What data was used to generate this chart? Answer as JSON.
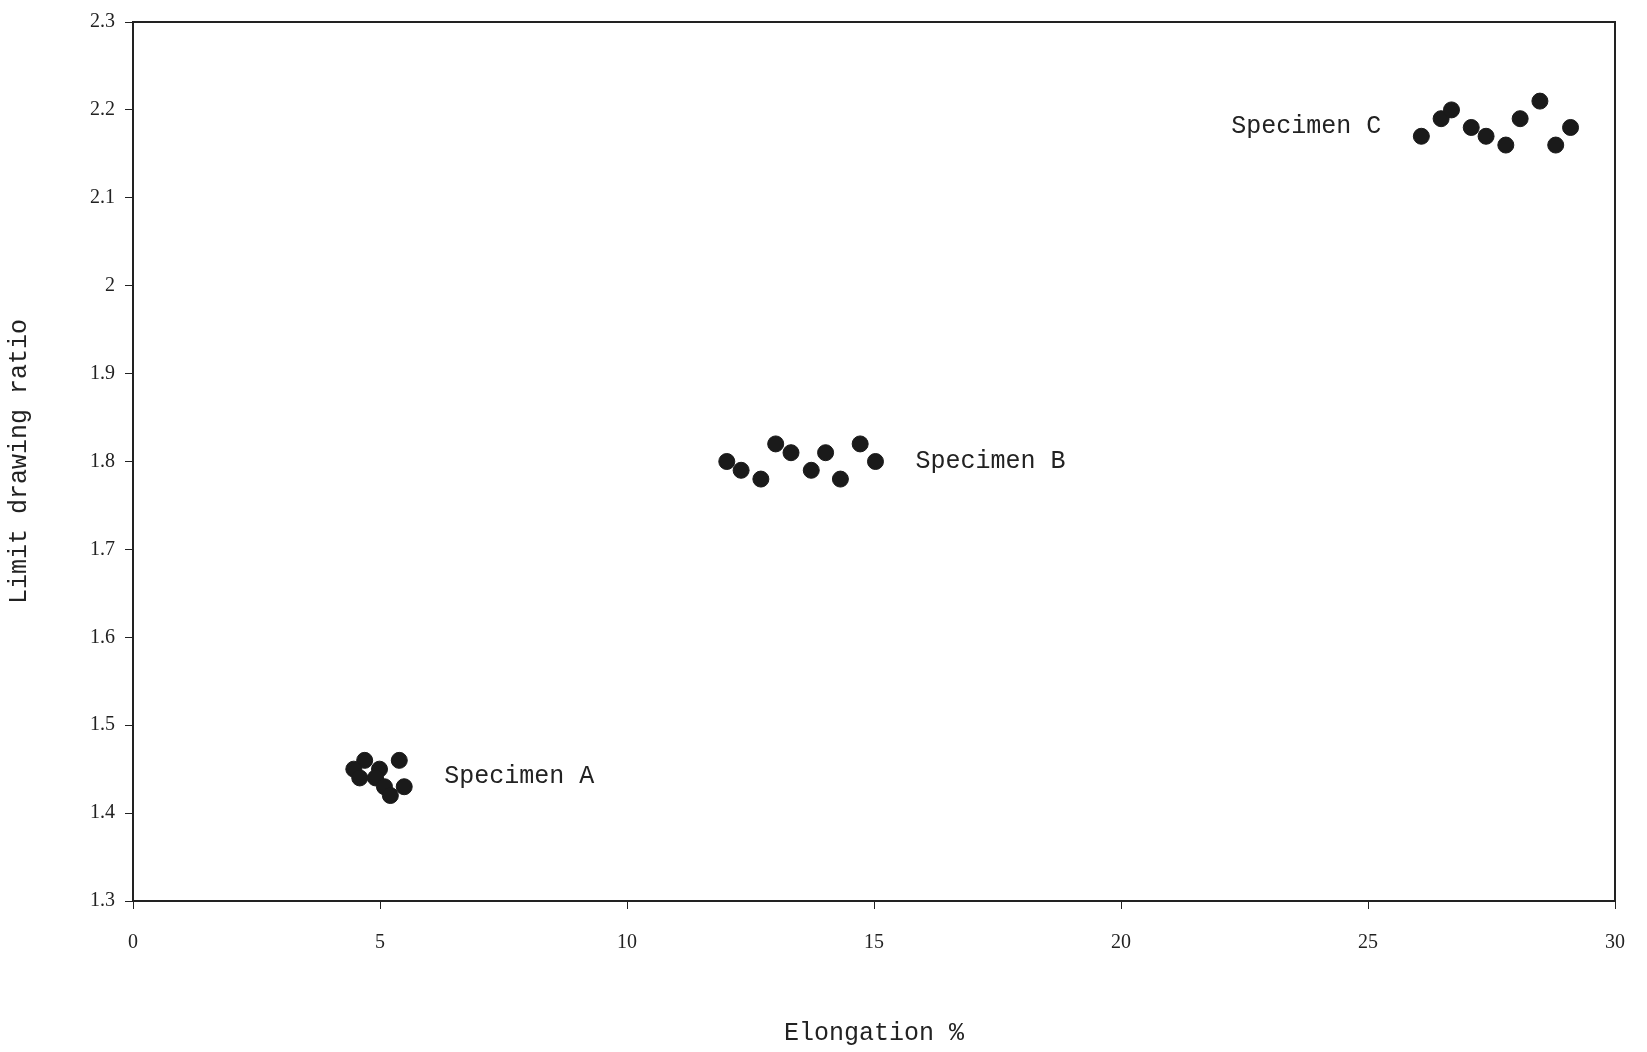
{
  "chart_data": {
    "type": "scatter",
    "xlabel": "Elongation %",
    "ylabel": "Limit drawing ratio",
    "xlim": [
      0,
      30
    ],
    "xticks": [
      0,
      5,
      10,
      15,
      20,
      25,
      30
    ],
    "ylim": [
      1.3,
      2.3
    ],
    "yticks": [
      1.3,
      1.4,
      1.5,
      1.6,
      1.7,
      1.8,
      1.9,
      2,
      2.1,
      2.2,
      2.3
    ],
    "grid": false,
    "legend": false,
    "marker": "circle",
    "series": [
      {
        "name": "Specimen A",
        "color": "#1a1a1a",
        "x": [
          4.69,
          4.47,
          4.59,
          4.99,
          4.91,
          5.09,
          5.21,
          5.39,
          5.49
        ],
        "values": [
          1.46,
          1.45,
          1.44,
          1.45,
          1.44,
          1.43,
          1.42,
          1.46,
          1.43
        ]
      },
      {
        "name": "Specimen B",
        "color": "#1a1a1a",
        "x": [
          12.02,
          12.31,
          12.71,
          13.01,
          13.32,
          13.73,
          14.02,
          14.32,
          14.72,
          15.03
        ],
        "values": [
          1.8,
          1.79,
          1.78,
          1.82,
          1.81,
          1.79,
          1.81,
          1.78,
          1.82,
          1.8
        ]
      },
      {
        "name": "Specimen C",
        "color": "#1a1a1a",
        "x": [
          26.08,
          26.48,
          26.69,
          27.09,
          27.39,
          27.79,
          28.08,
          28.48,
          28.8,
          29.1
        ],
        "values": [
          2.17,
          2.19,
          2.2,
          2.18,
          2.17,
          2.16,
          2.19,
          2.21,
          2.16,
          2.18
        ]
      }
    ]
  }
}
